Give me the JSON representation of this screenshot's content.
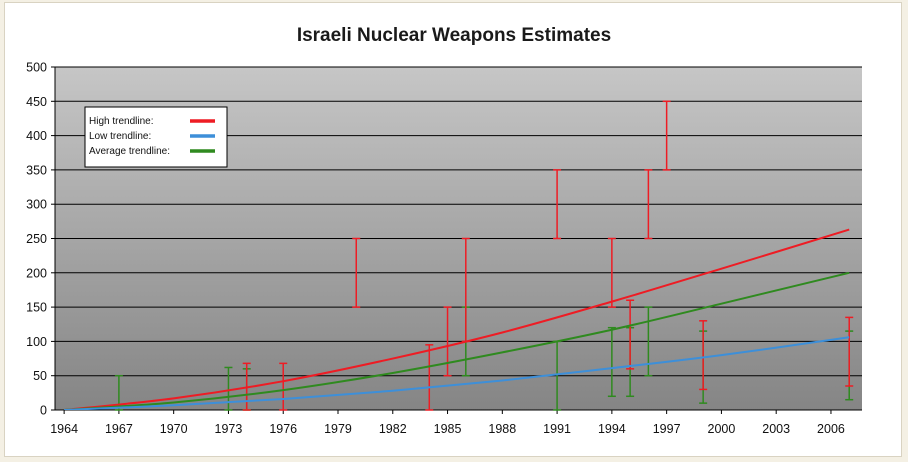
{
  "chart_data": {
    "type": "line",
    "title": "Israeli Nuclear Weapons Estimates",
    "xlabel": "",
    "ylabel": "",
    "xlim": [
      1963.5,
      2007.7
    ],
    "ylim": [
      0,
      500
    ],
    "y_ticks": [
      0,
      50,
      100,
      150,
      200,
      250,
      300,
      350,
      400,
      450,
      500
    ],
    "x_ticks": [
      1964,
      1967,
      1970,
      1973,
      1976,
      1979,
      1982,
      1985,
      1988,
      1991,
      1994,
      1997,
      2000,
      2003,
      2006
    ],
    "grid": "horizontal",
    "legend_position": "top-left",
    "colors": {
      "plot_bg_top": "#c6c6c6",
      "plot_bg_bottom": "#858585",
      "high": "#ee1c24",
      "low": "#3d8fd9",
      "average": "#2f8a1f",
      "grid": "#000000"
    },
    "legend": [
      {
        "label": "High trendline:",
        "color": "#ee1c24"
      },
      {
        "label": "Low trendline:",
        "color": "#3d8fd9"
      },
      {
        "label": "Average trendline:",
        "color": "#2f8a1f"
      }
    ],
    "trendlines": [
      {
        "key": "high",
        "color": "#ee1c24",
        "x": [
          1964,
          1970,
          1976,
          1982,
          1988,
          1994,
          2000,
          2007
        ],
        "y": [
          0,
          17,
          42,
          75,
          113,
          158,
          206,
          263
        ]
      },
      {
        "key": "average",
        "color": "#2f8a1f",
        "x": [
          1964,
          1970,
          1976,
          1982,
          1988,
          1994,
          2000,
          2007
        ],
        "y": [
          0,
          11,
          29,
          54,
          84,
          117,
          155,
          200
        ]
      },
      {
        "key": "low",
        "color": "#3d8fd9",
        "x": [
          1964,
          1970,
          1976,
          1982,
          1988,
          1994,
          2000,
          2007
        ],
        "y": [
          0,
          7,
          16,
          28,
          43,
          61,
          80,
          106
        ]
      }
    ],
    "error_bars": [
      {
        "series": "high",
        "x": 1974,
        "low": 0,
        "high": 68
      },
      {
        "series": "high",
        "x": 1976,
        "low": 0,
        "high": 68
      },
      {
        "series": "high",
        "x": 1980,
        "low": 150,
        "high": 250
      },
      {
        "series": "high",
        "x": 1984,
        "low": 0,
        "high": 95
      },
      {
        "series": "high",
        "x": 1985,
        "low": 50,
        "high": 150
      },
      {
        "series": "high",
        "x": 1986,
        "low": 100,
        "high": 250
      },
      {
        "series": "high",
        "x": 1991,
        "low": 250,
        "high": 350
      },
      {
        "series": "high",
        "x": 1994,
        "low": 150,
        "high": 250
      },
      {
        "series": "high",
        "x": 1995,
        "low": 60,
        "high": 160
      },
      {
        "series": "high",
        "x": 1996,
        "low": 250,
        "high": 350
      },
      {
        "series": "high",
        "x": 1997,
        "low": 350,
        "high": 450
      },
      {
        "series": "high",
        "x": 1999,
        "low": 30,
        "high": 130
      },
      {
        "series": "high",
        "x": 2007,
        "low": 35,
        "high": 135
      },
      {
        "series": "average",
        "x": 1967,
        "low": 0,
        "high": 50
      },
      {
        "series": "average",
        "x": 1973,
        "low": 0,
        "high": 62
      },
      {
        "series": "average",
        "x": 1974,
        "low": 0,
        "high": 60
      },
      {
        "series": "average",
        "x": 1986,
        "low": 50,
        "high": 150
      },
      {
        "series": "average",
        "x": 1991,
        "low": 0,
        "high": 100
      },
      {
        "series": "average",
        "x": 1994,
        "low": 20,
        "high": 120
      },
      {
        "series": "average",
        "x": 1995,
        "low": 20,
        "high": 120
      },
      {
        "series": "average",
        "x": 1996,
        "low": 50,
        "high": 150
      },
      {
        "series": "average",
        "x": 1999,
        "low": 10,
        "high": 115
      },
      {
        "series": "average",
        "x": 2007,
        "low": 15,
        "high": 115
      }
    ]
  }
}
